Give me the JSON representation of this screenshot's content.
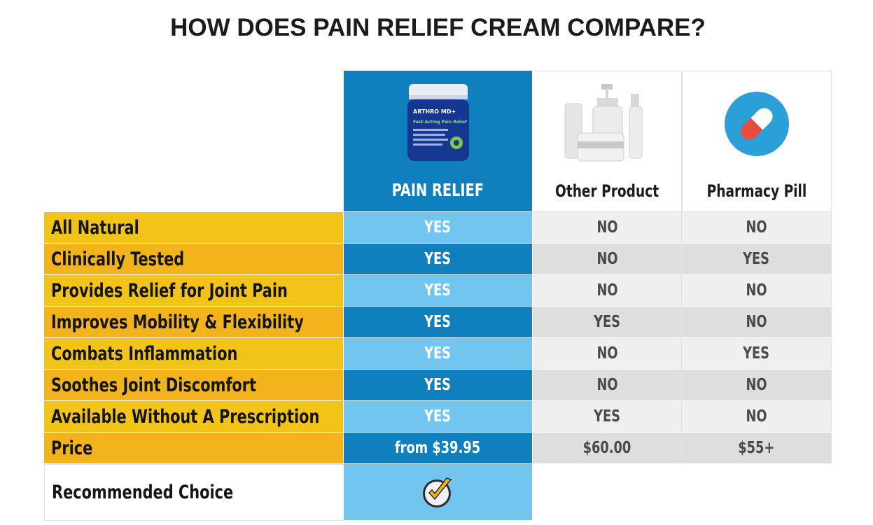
{
  "title": "HOW DOES PAIN RELIEF CREAM COMPARE?",
  "colors": {
    "primary_blue": "#0f80bd",
    "light_blue": "#72c5ef",
    "yellow": "#f2c41a",
    "yellow_dark": "#f2b41a",
    "gray_light": "#efefef",
    "gray_dark": "#dedede"
  },
  "products": [
    {
      "name": "PAIN RELIEF",
      "image": "cream-jar-icon",
      "jar_brand": "ARTHRO MD+",
      "jar_tagline": "Fast-Acting Pain Relief"
    },
    {
      "name": "Other Product",
      "image": "cosmetic-bottles-icon"
    },
    {
      "name": "Pharmacy Pill",
      "image": "pill-capsule-icon"
    }
  ],
  "rows": [
    {
      "feature": "All Natural",
      "values": [
        "YES",
        "NO",
        "NO"
      ]
    },
    {
      "feature": "Clinically Tested",
      "values": [
        "YES",
        "NO",
        "YES"
      ]
    },
    {
      "feature": "Provides Relief for Joint Pain",
      "values": [
        "YES",
        "NO",
        "NO"
      ]
    },
    {
      "feature": "Improves Mobility & Flexibility",
      "values": [
        "YES",
        "YES",
        "NO"
      ]
    },
    {
      "feature": "Combats Inflammation",
      "values": [
        "YES",
        "NO",
        "YES"
      ]
    },
    {
      "feature": "Soothes Joint Discomfort",
      "values": [
        "YES",
        "NO",
        "NO"
      ]
    },
    {
      "feature": "Available Without A Prescription",
      "values": [
        "YES",
        "YES",
        "NO"
      ]
    },
    {
      "feature": "Price",
      "values": [
        "from $39.95",
        "$60.00",
        "$55+"
      ]
    }
  ],
  "recommended": {
    "label": "Recommended Choice",
    "icon": "checkmark-badge-icon"
  }
}
